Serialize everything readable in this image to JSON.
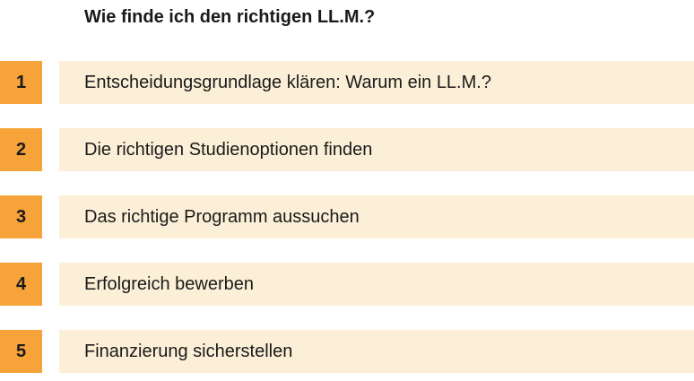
{
  "title": "Wie finde ich den richtigen LL.M.?",
  "colors": {
    "number_box": "#f6a33a",
    "bar": "#fcefd7",
    "text": "#1a1a1a"
  },
  "steps": [
    {
      "number": "1",
      "label": "Entscheidungsgrundlage klären: Warum ein LL.M.?"
    },
    {
      "number": "2",
      "label": "Die richtigen Studienoptionen finden"
    },
    {
      "number": "3",
      "label": "Das richtige Programm aussuchen"
    },
    {
      "number": "4",
      "label": "Erfolgreich bewerben"
    },
    {
      "number": "5",
      "label": "Finanzierung sicherstellen"
    }
  ]
}
